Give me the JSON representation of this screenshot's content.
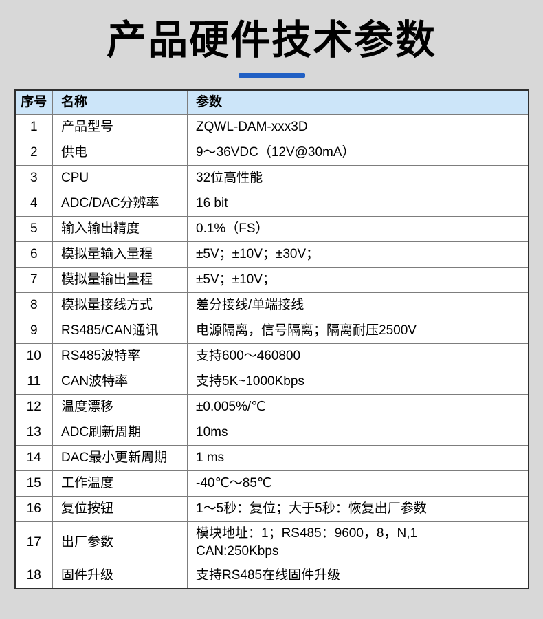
{
  "page": {
    "background_color": "#d8d8d8"
  },
  "header": {
    "title": "产品硬件技术参数",
    "accent_color": "#2160c4"
  },
  "table": {
    "header_bg": "#cce5f9",
    "columns": [
      {
        "key": "index",
        "label": "序号"
      },
      {
        "key": "name",
        "label": "名称"
      },
      {
        "key": "param",
        "label": "参数"
      }
    ],
    "rows": [
      {
        "index": "1",
        "name": "产品型号",
        "param": "ZQWL-DAM-xxx3D"
      },
      {
        "index": "2",
        "name": "供电",
        "param": "9～36VDC（12V@30mA）"
      },
      {
        "index": "3",
        "name": "CPU",
        "param": "32位高性能"
      },
      {
        "index": "4",
        "name": "ADC/DAC分辨率",
        "param": "16 bit"
      },
      {
        "index": "5",
        "name": "输入输出精度",
        "param": "0.1%（FS）"
      },
      {
        "index": "6",
        "name": "模拟量输入量程",
        "param": "±5V；±10V；±30V；"
      },
      {
        "index": "7",
        "name": "模拟量输出量程",
        "param": "±5V；±10V；"
      },
      {
        "index": "8",
        "name": "模拟量接线方式",
        "param": "差分接线/单端接线"
      },
      {
        "index": "9",
        "name": "RS485/CAN通讯",
        "param": "电源隔离，信号隔离；隔离耐压2500V"
      },
      {
        "index": "10",
        "name": "RS485波特率",
        "param": "支持600～460800"
      },
      {
        "index": "11",
        "name": "CAN波特率",
        "param": "支持5K~1000Kbps"
      },
      {
        "index": "12",
        "name": "温度漂移",
        "param": "±0.005%/℃"
      },
      {
        "index": "13",
        "name": "ADC刷新周期",
        "param": "10ms"
      },
      {
        "index": "14",
        "name": "DAC最小更新周期",
        "param": "1 ms"
      },
      {
        "index": "15",
        "name": "工作温度",
        "param": "-40℃～85℃"
      },
      {
        "index": "16",
        "name": "复位按钮",
        "param": "1～5秒：复位；大于5秒：恢复出厂参数"
      },
      {
        "index": "17",
        "name": "出厂参数",
        "param": "模块地址：1；RS485：9600，8，N,1\nCAN:250Kbps"
      },
      {
        "index": "18",
        "name": "固件升级",
        "param": "支持RS485在线固件升级"
      }
    ]
  }
}
